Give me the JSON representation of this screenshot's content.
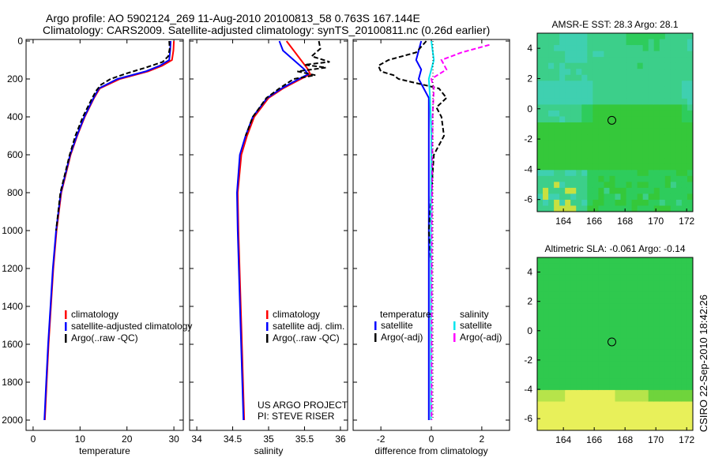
{
  "title_line1": "Argo profile: AO 5902124_269 11-Aug-2010 20100813_58 0.763S 167.144E",
  "title_line2": "Climatology: CARS2009. Satellite-adjusted climatology: synTS_20100811.nc (0.26d earlier)",
  "credit": "CSIRO 22-Sep-2010 18:42:26",
  "colors": {
    "clim": "#ff0000",
    "sat": "#0000ff",
    "argo": "#000000",
    "sal_sat": "#00e5ee",
    "sal_argo": "#ff00ff"
  },
  "chart_data": [
    {
      "type": "line",
      "id": "temp",
      "xlabel": "temperature",
      "ylabel": "",
      "xlim": [
        -1.5,
        32
      ],
      "ylim": [
        2050,
        0
      ],
      "xticks": [
        0,
        10,
        20,
        30
      ],
      "yticks": [
        0,
        200,
        400,
        600,
        800,
        1000,
        1200,
        1400,
        1600,
        1800,
        2000
      ],
      "legend": [
        "climatology",
        "satellite-adjusted climatology",
        "Argo(..raw -QC)"
      ],
      "series": [
        {
          "name": "climatology",
          "color": "clim",
          "depth": [
            0,
            50,
            100,
            130,
            160,
            200,
            250,
            300,
            400,
            500,
            600,
            800,
            1000,
            1200,
            1400,
            1600,
            1800,
            2000
          ],
          "values": [
            30.0,
            29.9,
            29.6,
            27.5,
            24.5,
            18.5,
            14.2,
            13.0,
            11.0,
            9.4,
            8.0,
            6.0,
            5.0,
            4.3,
            3.8,
            3.3,
            2.9,
            2.5
          ]
        },
        {
          "name": "satellite-adjusted climatology",
          "color": "sat",
          "depth": [
            0,
            50,
            100,
            130,
            160,
            200,
            250,
            300,
            400,
            500,
            600,
            800,
            1000,
            1200,
            1400,
            1600,
            1800,
            2000
          ],
          "values": [
            29.3,
            29.2,
            29.0,
            27.0,
            24.0,
            18.0,
            14.0,
            12.9,
            10.9,
            9.3,
            7.9,
            5.9,
            4.9,
            4.2,
            3.7,
            3.2,
            2.8,
            2.4
          ]
        },
        {
          "name": "Argo(..raw -QC)",
          "color": "argo",
          "dash": true,
          "depth": [
            0,
            40,
            80,
            110,
            140,
            170,
            200,
            230,
            260,
            300,
            400,
            500,
            600,
            800,
            1000
          ],
          "values": [
            29.0,
            29.1,
            28.8,
            27.6,
            24.0,
            20.0,
            16.5,
            14.5,
            13.5,
            12.6,
            10.6,
            9.0,
            7.8,
            5.8,
            4.9
          ]
        }
      ]
    },
    {
      "type": "line",
      "id": "sal",
      "xlabel": "salinity",
      "xlim": [
        33.9,
        36.1
      ],
      "ylim": [
        2050,
        0
      ],
      "xticks": [
        34,
        34.5,
        35,
        35.5,
        36
      ],
      "legend": [
        "climatology",
        "satellite adj. clim.",
        "Argo(..raw -QC)"
      ],
      "annotation": [
        "US ARGO PROJECT",
        "PI: STEVE RISER"
      ],
      "series": [
        {
          "name": "climatology",
          "color": "clim",
          "depth": [
            0,
            50,
            100,
            150,
            175,
            200,
            250,
            300,
            400,
            500,
            600,
            800,
            1000,
            1500,
            2000
          ],
          "values": [
            35.25,
            35.35,
            35.45,
            35.55,
            35.58,
            35.45,
            35.2,
            35.0,
            34.8,
            34.7,
            34.62,
            34.57,
            34.58,
            34.62,
            34.66
          ]
        },
        {
          "name": "satellite adj. clim.",
          "color": "sat",
          "depth": [
            0,
            50,
            100,
            150,
            175,
            200,
            250,
            300,
            400,
            500,
            600,
            800,
            1000,
            1500,
            2000
          ],
          "values": [
            35.15,
            35.2,
            35.35,
            35.5,
            35.55,
            35.42,
            35.18,
            34.98,
            34.78,
            34.68,
            34.6,
            34.56,
            34.57,
            34.61,
            34.65
          ]
        },
        {
          "name": "Argo(..raw -QC)",
          "color": "argo",
          "dash": true,
          "depth": [
            0,
            40,
            80,
            110,
            125,
            140,
            160,
            180,
            200,
            250,
            300,
            400,
            500
          ],
          "values": [
            35.7,
            35.72,
            35.6,
            35.85,
            35.5,
            35.8,
            35.4,
            35.65,
            35.35,
            35.15,
            34.97,
            34.78,
            34.68
          ]
        }
      ]
    },
    {
      "type": "line",
      "id": "diff",
      "xlabel": "difference from climatology",
      "xlim": [
        -3.1,
        3.1
      ],
      "ylim": [
        2050,
        0
      ],
      "xticks": [
        -2,
        0,
        2
      ],
      "legend_headers": [
        "temperature",
        "salinity"
      ],
      "legend": [
        "satellite",
        "Argo(-adj)",
        "satellite",
        "Argo(-adj)"
      ],
      "series": [
        {
          "name": "temperature satellite",
          "color": "sat",
          "depth": [
            0,
            100,
            150,
            200,
            300,
            500,
            1000,
            1400,
            2000
          ],
          "values": [
            -0.4,
            -0.6,
            -0.4,
            -0.5,
            -0.1,
            -0.1,
            -0.1,
            -0.1,
            -0.1
          ]
        },
        {
          "name": "temperature Argo(-adj)",
          "color": "argo",
          "dash": true,
          "depth": [
            0,
            60,
            100,
            130,
            160,
            180,
            200,
            250,
            300,
            350,
            400,
            500,
            600,
            800,
            1000,
            1200
          ],
          "values": [
            -0.2,
            -0.6,
            -1.7,
            -2.1,
            -2.0,
            -1.5,
            -1.3,
            0.3,
            0.6,
            0.2,
            0.4,
            0.5,
            0.1,
            0.0,
            -0.1,
            0.0
          ]
        },
        {
          "name": "salinity satellite",
          "color": "sal_sat",
          "depth": [
            0,
            100,
            200,
            300,
            500,
            1000,
            2000
          ],
          "values": [
            0.0,
            0.1,
            -0.1,
            -0.05,
            0.0,
            -0.02,
            -0.02
          ]
        },
        {
          "name": "salinity Argo(-adj)",
          "color": "sal_argo",
          "dash": true,
          "depth": [
            20,
            60,
            100,
            150,
            200,
            250,
            400,
            1000,
            2000
          ],
          "values": [
            2.3,
            1.2,
            0.4,
            0.6,
            0.0,
            0.1,
            0.05,
            0.02,
            0.01
          ]
        }
      ]
    },
    {
      "type": "heatmap",
      "id": "sst",
      "title": "AMSR-E SST: 28.3 Argo: 28.1",
      "xlim": [
        162.3,
        172.4
      ],
      "ylim": [
        -6.8,
        5.0
      ],
      "xticks": [
        164,
        166,
        168,
        170,
        172
      ],
      "yticks": [
        -6,
        -4,
        -2,
        0,
        2,
        4
      ],
      "marker": {
        "lon": 167.144,
        "lat": -0.763
      }
    },
    {
      "type": "heatmap",
      "id": "sla",
      "title": "Altimetric SLA: -0.061 Argo: -0.14",
      "xlim": [
        162.3,
        172.4
      ],
      "ylim": [
        -6.8,
        5.0
      ],
      "xticks": [
        164,
        166,
        168,
        170,
        172
      ],
      "yticks": [
        -6,
        -4,
        -2,
        0,
        2,
        4
      ],
      "marker": {
        "lon": 167.144,
        "lat": -0.763
      }
    }
  ]
}
